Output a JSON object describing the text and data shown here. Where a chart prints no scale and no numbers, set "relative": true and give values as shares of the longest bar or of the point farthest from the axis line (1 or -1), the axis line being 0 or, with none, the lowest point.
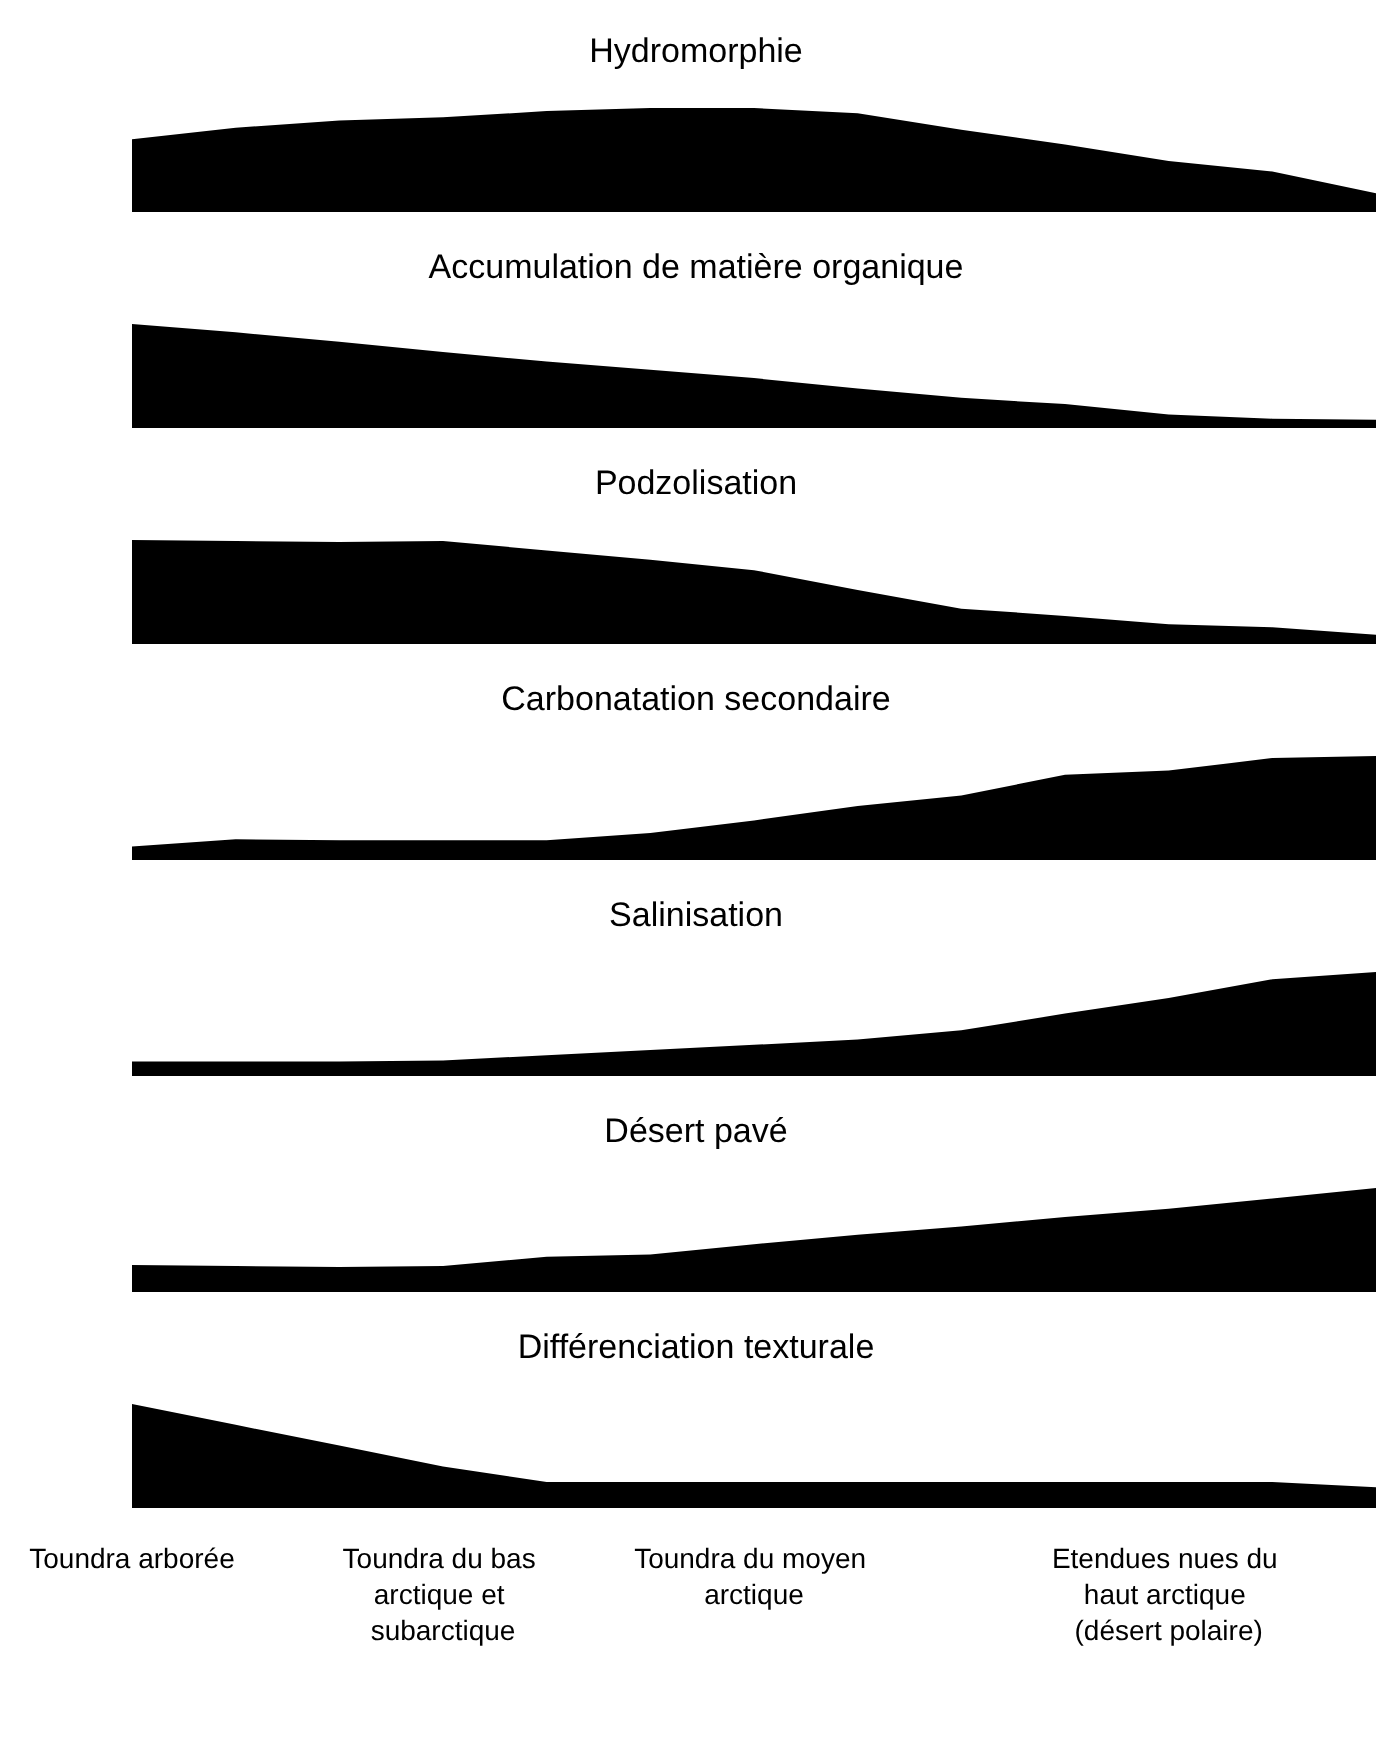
{
  "chart_data": [
    {
      "type": "area",
      "title": "Hydromorphie",
      "relative": true,
      "tick_labels": false,
      "categories": [
        null,
        null,
        null,
        null,
        null,
        null,
        null,
        null,
        null,
        null,
        null,
        null,
        null
      ],
      "series": [
        {
          "color": "#000000",
          "values": [
            0.7,
            0.81,
            0.88,
            0.91,
            0.97,
            1,
            1,
            0.95,
            0.79,
            0.65,
            0.49,
            0.39,
            0.18
          ]
        }
      ]
    },
    {
      "type": "area",
      "title": "Accumulation de matière organique",
      "relative": true,
      "tick_labels": false,
      "categories": [
        null,
        null,
        null,
        null,
        null,
        null,
        null,
        null,
        null,
        null,
        null,
        null,
        null
      ],
      "series": [
        {
          "color": "#000000",
          "values": [
            1,
            0.92,
            0.83,
            0.73,
            0.64,
            0.56,
            0.48,
            0.38,
            0.29,
            0.23,
            0.13,
            0.09,
            0.08
          ]
        }
      ]
    },
    {
      "type": "area",
      "title": "Podzolisation",
      "relative": true,
      "tick_labels": false,
      "categories": [
        null,
        null,
        null,
        null,
        null,
        null,
        null,
        null,
        null,
        null,
        null,
        null,
        null
      ],
      "series": [
        {
          "color": "#000000",
          "values": [
            1,
            0.99,
            0.98,
            0.99,
            0.9,
            0.81,
            0.71,
            0.52,
            0.34,
            0.27,
            0.19,
            0.16,
            0.09
          ]
        }
      ]
    },
    {
      "type": "area",
      "title": "Carbonatation secondaire",
      "relative": true,
      "tick_labels": false,
      "categories": [
        null,
        null,
        null,
        null,
        null,
        null,
        null,
        null,
        null,
        null,
        null,
        null,
        null
      ],
      "series": [
        {
          "color": "#000000",
          "values": [
            0.13,
            0.2,
            0.19,
            0.19,
            0.19,
            0.26,
            0.38,
            0.52,
            0.62,
            0.82,
            0.86,
            0.98,
            1
          ]
        }
      ]
    },
    {
      "type": "area",
      "title": "Salinisation",
      "relative": true,
      "tick_labels": false,
      "categories": [
        null,
        null,
        null,
        null,
        null,
        null,
        null,
        null,
        null,
        null,
        null,
        null,
        null
      ],
      "series": [
        {
          "color": "#000000",
          "values": [
            0.14,
            0.14,
            0.14,
            0.15,
            0.2,
            0.25,
            0.3,
            0.35,
            0.44,
            0.6,
            0.75,
            0.93,
            1
          ]
        }
      ]
    },
    {
      "type": "area",
      "title": "Désert pavé",
      "relative": true,
      "tick_labels": false,
      "categories": [
        null,
        null,
        null,
        null,
        null,
        null,
        null,
        null,
        null,
        null,
        null,
        null,
        null
      ],
      "series": [
        {
          "color": "#000000",
          "values": [
            0.26,
            0.25,
            0.24,
            0.25,
            0.34,
            0.36,
            0.46,
            0.55,
            0.63,
            0.72,
            0.8,
            0.9,
            1
          ]
        }
      ]
    },
    {
      "type": "area",
      "title": "Différenciation texturale",
      "relative": true,
      "tick_labels": "x",
      "categories": [
        "Toundra arborée",
        null,
        null,
        "Toundra du bas arctique et subarctique",
        null,
        null,
        "Toundra du moyen arctique",
        null,
        null,
        null,
        "Etendues nues du haut arctique (désert polaire)",
        null,
        null
      ],
      "series": [
        {
          "color": "#000000",
          "values": [
            1,
            0.8,
            0.6,
            0.4,
            0.25,
            0.25,
            0.25,
            0.25,
            0.25,
            0.25,
            0.25,
            0.25,
            0.2
          ]
        }
      ]
    }
  ]
}
